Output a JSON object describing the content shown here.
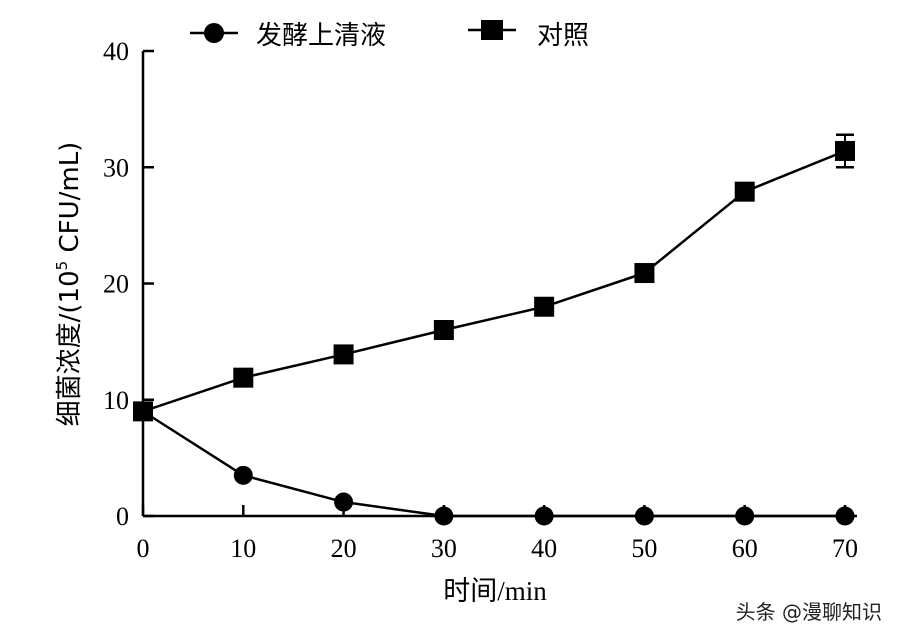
{
  "chart_data": {
    "type": "line",
    "title": "",
    "xlabel": "时间/min",
    "ylabel": "细菌浓度/(10^5 CFU/mL)",
    "ylabel_parts": {
      "prefix": "细菌浓度/(10",
      "sup": "5",
      "suffix": " CFU/mL)"
    },
    "x": [
      0,
      10,
      20,
      30,
      40,
      50,
      60,
      70
    ],
    "xlim": [
      0,
      70
    ],
    "ylim": [
      0,
      40
    ],
    "xticks": [
      0,
      10,
      20,
      30,
      40,
      50,
      60,
      70
    ],
    "yticks": [
      0,
      10,
      20,
      30,
      40
    ],
    "grid": false,
    "legend_position": "top",
    "series": [
      {
        "name": "发酵上清液",
        "marker": "circle",
        "values": [
          9.0,
          3.5,
          1.2,
          0,
          0,
          0,
          0,
          0
        ]
      },
      {
        "name": "对照",
        "marker": "square",
        "values": [
          9.0,
          11.9,
          13.9,
          16.0,
          18.0,
          20.9,
          27.9,
          31.4
        ],
        "error": [
          0,
          0,
          0,
          0,
          0,
          0,
          0,
          1.4
        ]
      }
    ]
  },
  "legend": {
    "items": [
      {
        "label": "发酵上清液",
        "marker": "circle"
      },
      {
        "label": "对照",
        "marker": "square"
      }
    ]
  },
  "watermark": "头条 @漫聊知识",
  "colors": {
    "line": "#000000",
    "background": "#ffffff"
  }
}
